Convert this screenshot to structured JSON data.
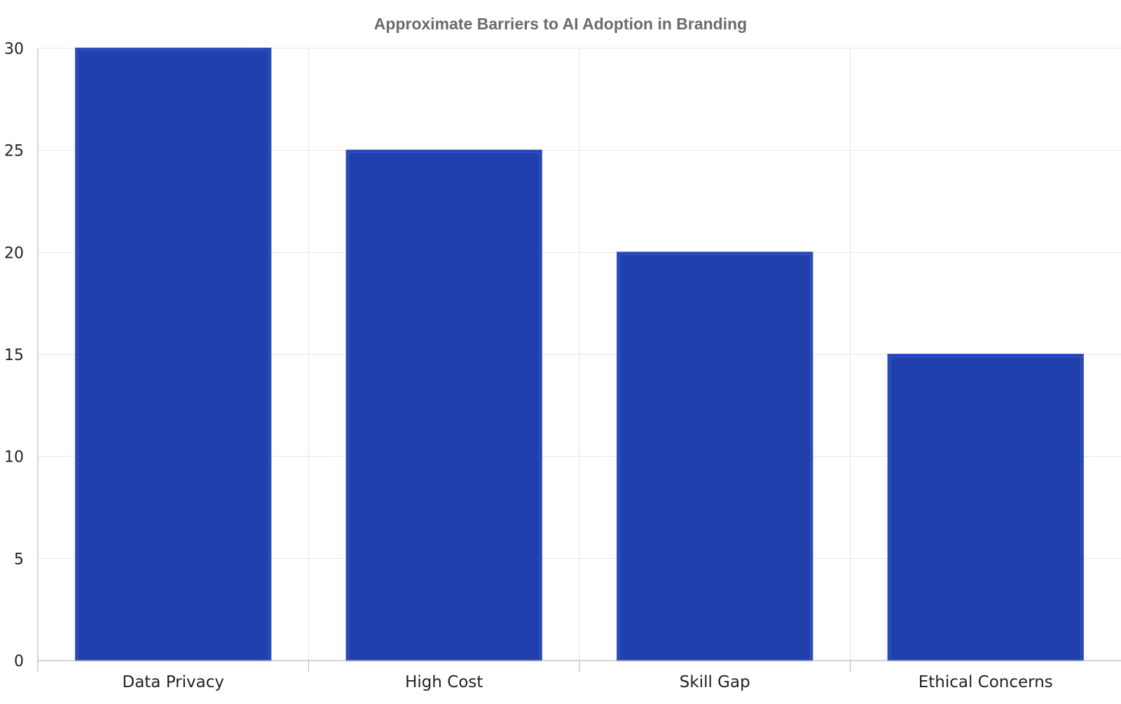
{
  "chart_data": {
    "type": "bar",
    "title": "Approximate Barriers to AI Adoption in Branding",
    "xlabel": "",
    "ylabel": "",
    "categories": [
      "Data Privacy",
      "High Cost",
      "Skill Gap",
      "Ethical Concerns"
    ],
    "values": [
      30,
      25,
      20,
      15
    ],
    "ylim": [
      0,
      30
    ],
    "yticks": [
      0,
      5,
      10,
      15,
      20,
      25,
      30
    ],
    "grid": true,
    "legend": "none",
    "bar_color": "#1f40ad",
    "bar_edge_color": "#2e4fc0"
  }
}
